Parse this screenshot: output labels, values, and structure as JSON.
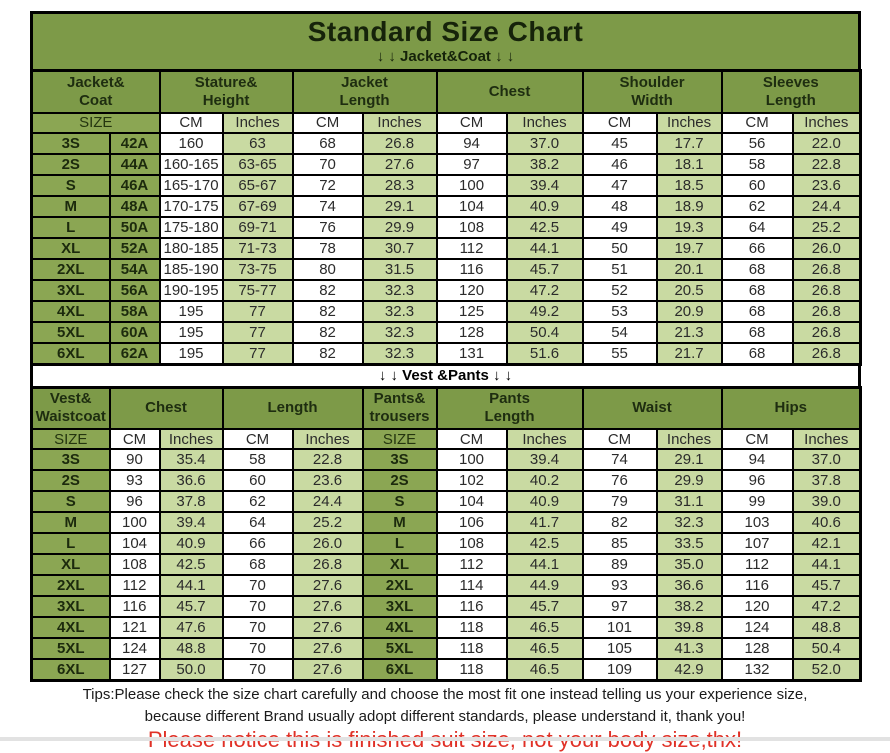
{
  "page": {
    "title": "Standard Size Chart",
    "tips_line1": "Tips:Please check the size chart carefully and choose the most fit one instead telling us your experience size,",
    "tips_line2": "because different Brand usually adopt different standards, please understand it, thank you!",
    "notice": "Please notice this is finished suit size, not your body size,thx!"
  },
  "colors": {
    "header_green": "#7d9a48",
    "size_green": "#8ba653",
    "pale_green": "#c9daa2",
    "notice_red": "#e03127",
    "border_black": "#000000"
  },
  "jacket_section": {
    "banner": "↓ ↓  Jacket&Coat ↓ ↓",
    "header_groups": [
      {
        "label": "Jacket&\nCoat",
        "span": 2
      },
      {
        "label": "Stature&\nHeight",
        "span": 2
      },
      {
        "label": "Jacket\nLength",
        "span": 2
      },
      {
        "label": "Chest",
        "span": 2
      },
      {
        "label": "Shoulder\nWidth",
        "span": 2
      },
      {
        "label": "Sleeves\nLength",
        "span": 2
      }
    ],
    "unit_row": [
      {
        "label": "SIZE",
        "span": 2,
        "type": "size"
      },
      {
        "label": "CM",
        "span": 1,
        "type": "cm"
      },
      {
        "label": "Inches",
        "span": 1,
        "type": "in"
      },
      {
        "label": "CM",
        "span": 1,
        "type": "cm"
      },
      {
        "label": "Inches",
        "span": 1,
        "type": "in"
      },
      {
        "label": "CM",
        "span": 1,
        "type": "cm"
      },
      {
        "label": "Inches",
        "span": 1,
        "type": "in"
      },
      {
        "label": "CM",
        "span": 1,
        "type": "cm"
      },
      {
        "label": "Inches",
        "span": 1,
        "type": "in"
      },
      {
        "label": "CM",
        "span": 1,
        "type": "cm"
      },
      {
        "label": "Inches",
        "span": 1,
        "type": "in"
      }
    ],
    "col_types": [
      "size",
      "size",
      "cm",
      "in",
      "cm",
      "in",
      "cm",
      "in",
      "cm",
      "in",
      "cm",
      "in"
    ],
    "rows": [
      [
        "3S",
        "42A",
        "160",
        "63",
        "68",
        "26.8",
        "94",
        "37.0",
        "45",
        "17.7",
        "56",
        "22.0"
      ],
      [
        "2S",
        "44A",
        "160-165",
        "63-65",
        "70",
        "27.6",
        "97",
        "38.2",
        "46",
        "18.1",
        "58",
        "22.8"
      ],
      [
        "S",
        "46A",
        "165-170",
        "65-67",
        "72",
        "28.3",
        "100",
        "39.4",
        "47",
        "18.5",
        "60",
        "23.6"
      ],
      [
        "M",
        "48A",
        "170-175",
        "67-69",
        "74",
        "29.1",
        "104",
        "40.9",
        "48",
        "18.9",
        "62",
        "24.4"
      ],
      [
        "L",
        "50A",
        "175-180",
        "69-71",
        "76",
        "29.9",
        "108",
        "42.5",
        "49",
        "19.3",
        "64",
        "25.2"
      ],
      [
        "XL",
        "52A",
        "180-185",
        "71-73",
        "78",
        "30.7",
        "112",
        "44.1",
        "50",
        "19.7",
        "66",
        "26.0"
      ],
      [
        "2XL",
        "54A",
        "185-190",
        "73-75",
        "80",
        "31.5",
        "116",
        "45.7",
        "51",
        "20.1",
        "68",
        "26.8"
      ],
      [
        "3XL",
        "56A",
        "190-195",
        "75-77",
        "82",
        "32.3",
        "120",
        "47.2",
        "52",
        "20.5",
        "68",
        "26.8"
      ],
      [
        "4XL",
        "58A",
        "195",
        "77",
        "82",
        "32.3",
        "125",
        "49.2",
        "53",
        "20.9",
        "68",
        "26.8"
      ],
      [
        "5XL",
        "60A",
        "195",
        "77",
        "82",
        "32.3",
        "128",
        "50.4",
        "54",
        "21.3",
        "68",
        "26.8"
      ],
      [
        "6XL",
        "62A",
        "195",
        "77",
        "82",
        "32.3",
        "131",
        "51.6",
        "55",
        "21.7",
        "68",
        "26.8"
      ]
    ]
  },
  "vest_section": {
    "banner": "↓ ↓  Vest &Pants ↓ ↓",
    "header_groups": [
      {
        "label": "Vest&\nWaistcoat",
        "span": 1
      },
      {
        "label": "Chest",
        "span": 2
      },
      {
        "label": "Length",
        "span": 2
      },
      {
        "label": "Pants&\ntrousers",
        "span": 1
      },
      {
        "label": "Pants\nLength",
        "span": 2
      },
      {
        "label": "Waist",
        "span": 2
      },
      {
        "label": "Hips",
        "span": 2
      }
    ],
    "unit_row": [
      {
        "label": "SIZE",
        "span": 1,
        "type": "size"
      },
      {
        "label": "CM",
        "span": 1,
        "type": "cm"
      },
      {
        "label": "Inches",
        "span": 1,
        "type": "in"
      },
      {
        "label": "CM",
        "span": 1,
        "type": "cm"
      },
      {
        "label": "Inches",
        "span": 1,
        "type": "in"
      },
      {
        "label": "SIZE",
        "span": 1,
        "type": "size"
      },
      {
        "label": "CM",
        "span": 1,
        "type": "cm"
      },
      {
        "label": "Inches",
        "span": 1,
        "type": "in"
      },
      {
        "label": "CM",
        "span": 1,
        "type": "cm"
      },
      {
        "label": "Inches",
        "span": 1,
        "type": "in"
      },
      {
        "label": "CM",
        "span": 1,
        "type": "cm"
      },
      {
        "label": "Inches",
        "span": 1,
        "type": "in"
      }
    ],
    "col_types": [
      "size",
      "cm",
      "in",
      "cm",
      "in",
      "size",
      "cm",
      "in",
      "cm",
      "in",
      "cm",
      "in"
    ],
    "rows": [
      [
        "3S",
        "90",
        "35.4",
        "58",
        "22.8",
        "3S",
        "100",
        "39.4",
        "74",
        "29.1",
        "94",
        "37.0"
      ],
      [
        "2S",
        "93",
        "36.6",
        "60",
        "23.6",
        "2S",
        "102",
        "40.2",
        "76",
        "29.9",
        "96",
        "37.8"
      ],
      [
        "S",
        "96",
        "37.8",
        "62",
        "24.4",
        "S",
        "104",
        "40.9",
        "79",
        "31.1",
        "99",
        "39.0"
      ],
      [
        "M",
        "100",
        "39.4",
        "64",
        "25.2",
        "M",
        "106",
        "41.7",
        "82",
        "32.3",
        "103",
        "40.6"
      ],
      [
        "L",
        "104",
        "40.9",
        "66",
        "26.0",
        "L",
        "108",
        "42.5",
        "85",
        "33.5",
        "107",
        "42.1"
      ],
      [
        "XL",
        "108",
        "42.5",
        "68",
        "26.8",
        "XL",
        "112",
        "44.1",
        "89",
        "35.0",
        "112",
        "44.1"
      ],
      [
        "2XL",
        "112",
        "44.1",
        "70",
        "27.6",
        "2XL",
        "114",
        "44.9",
        "93",
        "36.6",
        "116",
        "45.7"
      ],
      [
        "3XL",
        "116",
        "45.7",
        "70",
        "27.6",
        "3XL",
        "116",
        "45.7",
        "97",
        "38.2",
        "120",
        "47.2"
      ],
      [
        "4XL",
        "121",
        "47.6",
        "70",
        "27.6",
        "4XL",
        "118",
        "46.5",
        "101",
        "39.8",
        "124",
        "48.8"
      ],
      [
        "5XL",
        "124",
        "48.8",
        "70",
        "27.6",
        "5XL",
        "118",
        "46.5",
        "105",
        "41.3",
        "128",
        "50.4"
      ],
      [
        "6XL",
        "127",
        "50.0",
        "70",
        "27.6",
        "6XL",
        "118",
        "46.5",
        "109",
        "42.9",
        "132",
        "52.0"
      ]
    ]
  }
}
